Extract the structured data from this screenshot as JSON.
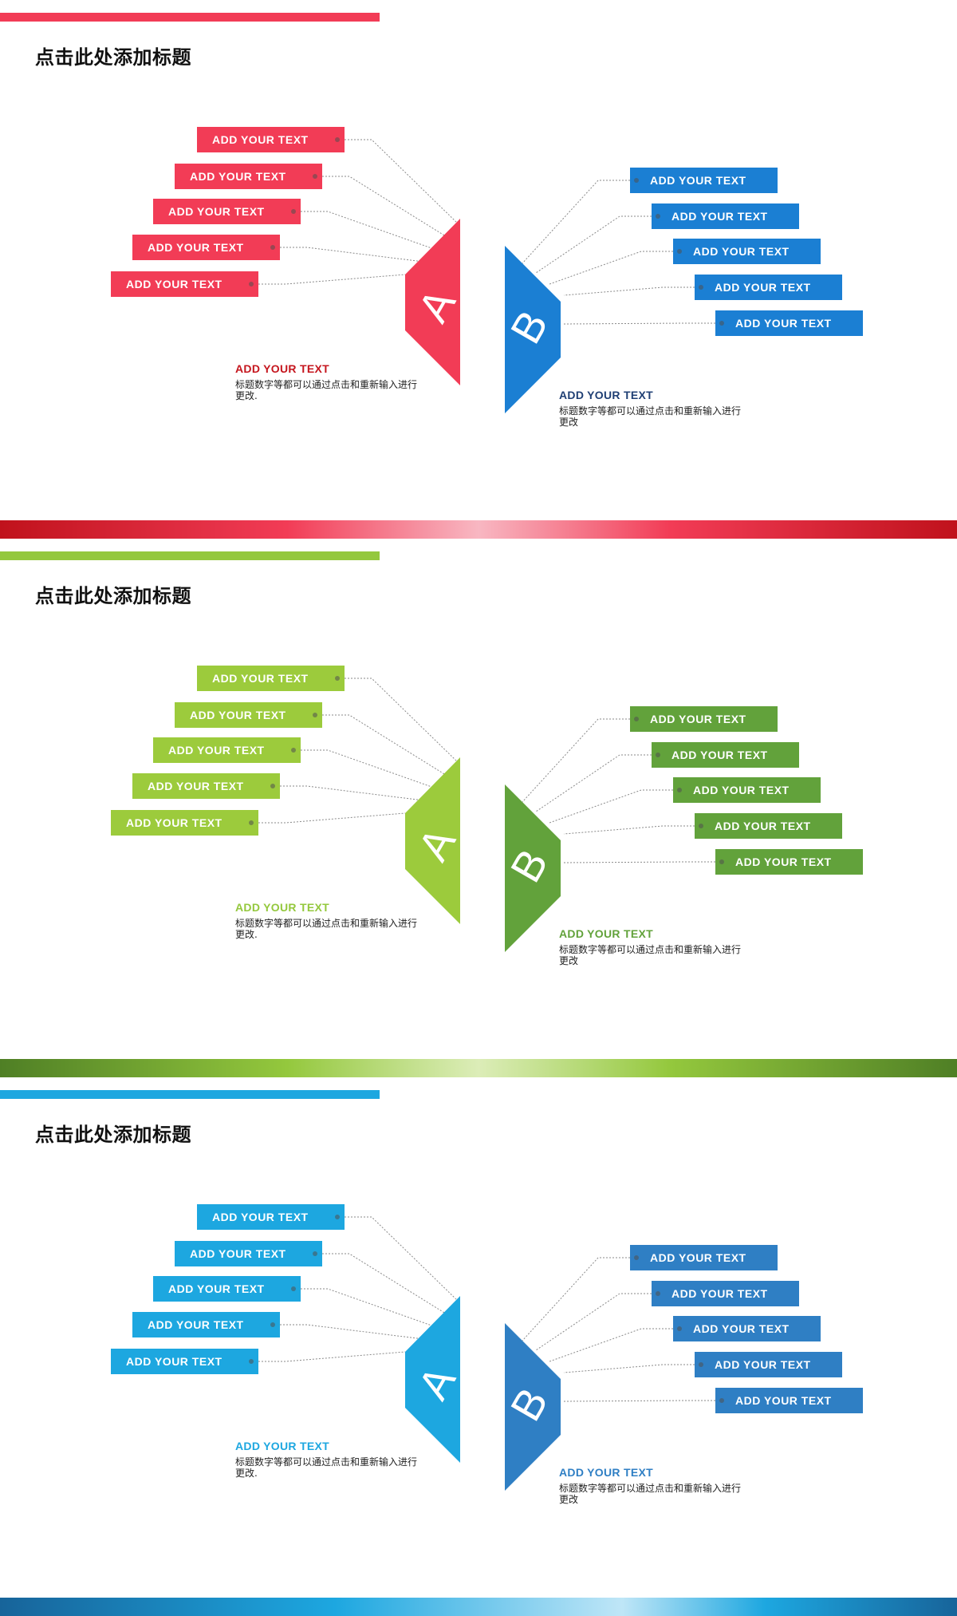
{
  "slides": [
    {
      "title": "点击此处添加标题",
      "left_tags": [
        "ADD YOUR TEXT",
        "ADD YOUR TEXT",
        "ADD YOUR TEXT",
        "ADD YOUR TEXT",
        "ADD YOUR TEXT"
      ],
      "right_tags": [
        "ADD YOUR TEXT",
        "ADD YOUR TEXT",
        "ADD YOUR TEXT",
        "ADD YOUR TEXT",
        "ADD YOUR TEXT"
      ],
      "letter_a": "A",
      "letter_b": "B",
      "caption_a": {
        "title": "ADD YOUR TEXT",
        "body": "标题数字等都可以通过点击和重新输入进行更改."
      },
      "caption_b": {
        "title": "ADD YOUR TEXT",
        "body": "标题数字等都可以通过点击和重新输入进行更改"
      },
      "colors": {
        "accent": "#f23c56",
        "a": "#f23c56",
        "b": "#1b7fd3",
        "caption_a": "#c5161e",
        "caption_b": "#1f3f74",
        "divider": "linear-gradient(90deg,#c0121c 0%,#f23c56 30%,#f8b7c2 50%,#f23c56 70%,#c0121c 100%)"
      }
    },
    {
      "title": "点击此处添加标题",
      "left_tags": [
        "ADD YOUR TEXT",
        "ADD YOUR TEXT",
        "ADD YOUR TEXT",
        "ADD YOUR TEXT",
        "ADD YOUR TEXT"
      ],
      "right_tags": [
        "ADD YOUR TEXT",
        "ADD YOUR TEXT",
        "ADD YOUR TEXT",
        "ADD YOUR TEXT",
        "ADD YOUR TEXT"
      ],
      "letter_a": "A",
      "letter_b": "B",
      "caption_a": {
        "title": "ADD YOUR TEXT",
        "body": "标题数字等都可以通过点击和重新输入进行更改."
      },
      "caption_b": {
        "title": "ADD YOUR TEXT",
        "body": "标题数字等都可以通过点击和重新输入进行更改"
      },
      "colors": {
        "accent": "#94c83d",
        "a": "#9ccb3c",
        "b": "#62a23b",
        "caption_a": "#94c83d",
        "caption_b": "#62a23b",
        "divider": "linear-gradient(90deg,#4f7f25 0%,#94c83d 30%,#dcedb8 50%,#94c83d 70%,#4f7f25 100%)"
      }
    },
    {
      "title": "点击此处添加标题",
      "left_tags": [
        "ADD YOUR TEXT",
        "ADD YOUR TEXT",
        "ADD YOUR TEXT",
        "ADD YOUR TEXT",
        "ADD YOUR TEXT"
      ],
      "right_tags": [
        "ADD YOUR TEXT",
        "ADD YOUR TEXT",
        "ADD YOUR TEXT",
        "ADD YOUR TEXT",
        "ADD YOUR TEXT"
      ],
      "letter_a": "A",
      "letter_b": "B",
      "caption_a": {
        "title": "ADD YOUR TEXT",
        "body": "标题数字等都可以通过点击和重新输入进行更改."
      },
      "caption_b": {
        "title": "ADD YOUR TEXT",
        "body": "标题数字等都可以通过点击和重新输入进行更改"
      },
      "colors": {
        "accent": "#1da7e0",
        "a": "#1da7e0",
        "b": "#2f7fc4",
        "caption_a": "#1da7e0",
        "caption_b": "#2f7fc4",
        "divider": "linear-gradient(90deg,#17649a 0%,#1da7e0 35%,#bfe6f7 65%,#1da7e0 80%,#17649a 100%)"
      }
    }
  ]
}
